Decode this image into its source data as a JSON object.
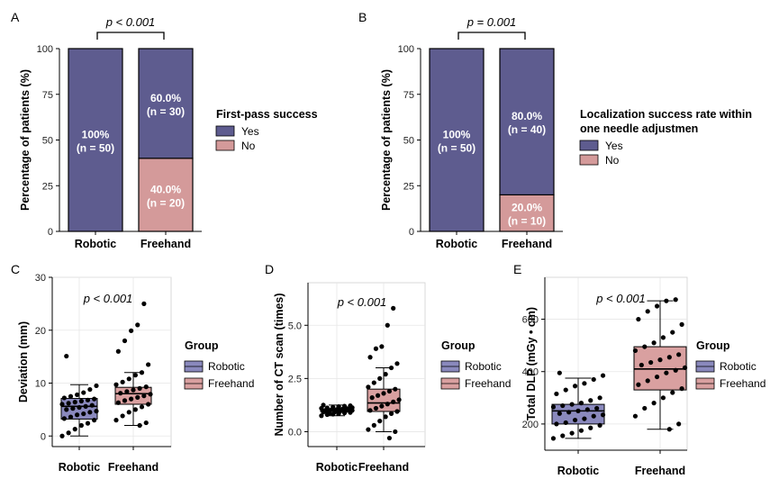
{
  "colors": {
    "yes": "#5e5c8f",
    "no": "#d49a9a",
    "robotic": "#8a89bd",
    "freehand": "#d9a0a0",
    "edge": "#000000"
  },
  "chart_data": [
    {
      "id": "A",
      "type": "bar",
      "stacked": true,
      "letter": "A",
      "categories": [
        "Robotic",
        "Freehand"
      ],
      "ylabel": "Percentage of patients (%)",
      "ylim": [
        0,
        100
      ],
      "yticks": [
        "0",
        "25",
        "50",
        "75",
        "100"
      ],
      "series": [
        {
          "name": "No",
          "values": [
            0,
            40
          ],
          "labels": [
            "",
            "40.0%"
          ],
          "nlabels": [
            "",
            "(n = 20)"
          ]
        },
        {
          "name": "Yes",
          "values": [
            100,
            60
          ],
          "labels": [
            "100%",
            "60.0%"
          ],
          "nlabels": [
            "(n = 50)",
            "(n = 30)"
          ]
        }
      ],
      "annotation": "p < 0.001",
      "legend": {
        "title": "First-pass success",
        "title2": "",
        "items": [
          "Yes",
          "No"
        ]
      }
    },
    {
      "id": "B",
      "type": "bar",
      "stacked": true,
      "letter": "B",
      "categories": [
        "Robotic",
        "Freehand"
      ],
      "ylabel": "Percentage of patients (%)",
      "ylim": [
        0,
        100
      ],
      "yticks": [
        "0",
        "25",
        "50",
        "75",
        "100"
      ],
      "series": [
        {
          "name": "No",
          "values": [
            0,
            20
          ],
          "labels": [
            "",
            "20.0%"
          ],
          "nlabels": [
            "",
            "(n = 10)"
          ]
        },
        {
          "name": "Yes",
          "values": [
            100,
            80
          ],
          "labels": [
            "100%",
            "80.0%"
          ],
          "nlabels": [
            "(n = 50)",
            "(n = 40)"
          ]
        }
      ],
      "annotation": "p = 0.001",
      "legend": {
        "title": "Localization success rate within",
        "title2": "one needle adjustmen",
        "items": [
          "Yes",
          "No"
        ]
      }
    },
    {
      "id": "C",
      "type": "box",
      "letter": "C",
      "categories": [
        "Robotic",
        "Freehand"
      ],
      "ylabel": "Deviation (mm)",
      "ylim": [
        -2,
        30
      ],
      "yticks": [
        "0",
        "10",
        "20",
        "30"
      ],
      "boxes": [
        {
          "q1": 3.2,
          "median": 5.6,
          "q3": 7.1,
          "lower": 0.0,
          "upper": 9.7
        },
        {
          "q1": 6.0,
          "median": 8.0,
          "q3": 9.2,
          "lower": 2.0,
          "upper": 12.0
        }
      ],
      "points": [
        [
          0.0,
          0.6,
          1.3,
          2.0,
          2.4,
          3.0,
          3.3,
          3.6,
          4.0,
          4.2,
          4.5,
          4.7,
          5.0,
          5.2,
          5.4,
          5.6,
          5.8,
          6.0,
          6.2,
          6.4,
          6.6,
          6.8,
          7.0,
          7.2,
          7.5,
          7.8,
          8.2,
          8.8,
          9.5,
          15.1
        ],
        [
          2.0,
          2.5,
          3.0,
          3.8,
          4.5,
          5.0,
          5.5,
          6.0,
          6.3,
          6.7,
          7.0,
          7.3,
          7.6,
          7.9,
          8.1,
          8.4,
          8.7,
          9.0,
          9.3,
          9.7,
          10.2,
          10.8,
          11.5,
          12.0,
          13.5,
          16.0,
          18.0,
          19.9,
          21.0,
          25.0
        ]
      ],
      "annotation": "p < 0.001",
      "legend": {
        "title": "Group",
        "items": [
          "Robotic",
          "Freehand"
        ]
      }
    },
    {
      "id": "D",
      "type": "box",
      "letter": "D",
      "categories": [
        "Robotic",
        "Freehand"
      ],
      "ylabel": "Number of CT scan (times)",
      "ylim": [
        -0.7,
        7.0
      ],
      "yticks": [
        "0.0",
        "2.5",
        "5.0"
      ],
      "boxes": [
        {
          "q1": 0.95,
          "median": 1.0,
          "q3": 1.05,
          "lower": 0.75,
          "upper": 1.25
        },
        {
          "q1": 0.95,
          "median": 1.35,
          "q3": 2.0,
          "lower": 0.0,
          "upper": 3.0
        }
      ],
      "points": [
        [
          0.75,
          0.8,
          0.82,
          0.85,
          0.88,
          0.9,
          0.92,
          0.94,
          0.96,
          0.98,
          1.0,
          1.0,
          1.0,
          1.02,
          1.04,
          1.06,
          1.08,
          1.1,
          1.12,
          1.15,
          1.18,
          1.2,
          1.22,
          1.25,
          0.86,
          0.93,
          1.01,
          1.09,
          1.13,
          0.97
        ],
        [
          -0.3,
          0.0,
          0.1,
          0.3,
          0.5,
          0.7,
          0.85,
          0.95,
          1.0,
          1.1,
          1.2,
          1.3,
          1.4,
          1.5,
          1.6,
          1.7,
          1.8,
          1.9,
          2.0,
          2.1,
          2.3,
          2.5,
          2.7,
          3.0,
          3.2,
          3.5,
          3.9,
          4.0,
          5.0,
          5.8
        ]
      ],
      "annotation": "p < 0.001",
      "legend": {
        "title": "Group",
        "items": [
          "Robotic",
          "Freehand"
        ]
      }
    },
    {
      "id": "E",
      "type": "box",
      "letter": "E",
      "categories": [
        "Robotic",
        "Freehand"
      ],
      "ylabel": "Total DLP (mGy • cm)",
      "ylim": [
        100,
        760
      ],
      "yticks": [
        "200",
        "400",
        "600"
      ],
      "boxes": [
        {
          "q1": 200,
          "median": 250,
          "q3": 275,
          "lower": 145,
          "upper": 375
        },
        {
          "q1": 330,
          "median": 410,
          "q3": 495,
          "lower": 180,
          "upper": 670
        }
      ],
      "points": [
        [
          145,
          155,
          165,
          175,
          185,
          195,
          200,
          205,
          215,
          220,
          230,
          235,
          240,
          245,
          250,
          255,
          260,
          265,
          270,
          275,
          280,
          290,
          300,
          315,
          330,
          345,
          355,
          370,
          385,
          395
        ],
        [
          180,
          200,
          230,
          260,
          280,
          300,
          320,
          335,
          350,
          365,
          380,
          395,
          405,
          415,
          425,
          435,
          445,
          455,
          465,
          480,
          495,
          510,
          530,
          550,
          580,
          600,
          630,
          650,
          670,
          675
        ]
      ],
      "annotation": "p < 0.001",
      "legend": {
        "title": "Group",
        "items": [
          "Robotic",
          "Freehand"
        ]
      }
    }
  ]
}
